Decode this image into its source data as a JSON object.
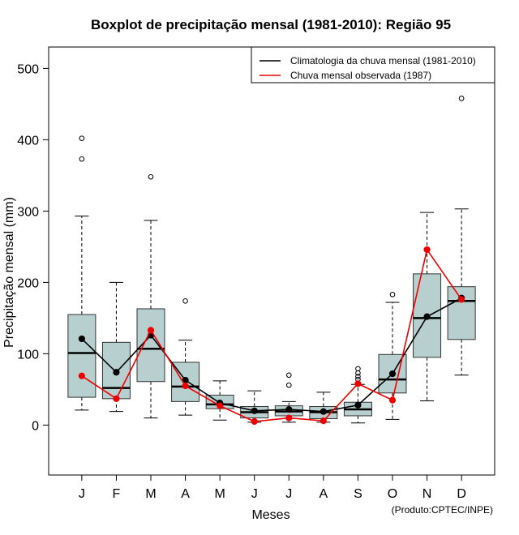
{
  "chart_data": {
    "type": "boxplot",
    "title": "Boxplot de precipitação mensal (1981-2010): Região 95",
    "xlabel": "Meses",
    "ylabel": "Precipitação mensal (mm)",
    "credit": "(Produto:CPTEC/INPE)",
    "ylim": [
      -70,
      530
    ],
    "yticks": [
      0,
      100,
      200,
      300,
      400,
      500
    ],
    "categories": [
      "J",
      "F",
      "M",
      "A",
      "M",
      "J",
      "J",
      "A",
      "S",
      "O",
      "N",
      "D"
    ],
    "boxes": [
      {
        "month": "J",
        "min": 21,
        "q1": 39,
        "median": 101,
        "q3": 155,
        "max": 293,
        "outliers": [
          373,
          402
        ]
      },
      {
        "month": "F",
        "min": 19,
        "q1": 37,
        "median": 52,
        "q3": 116,
        "max": 200,
        "outliers": []
      },
      {
        "month": "M",
        "min": 10,
        "q1": 61,
        "median": 107,
        "q3": 163,
        "max": 287,
        "outliers": [
          348
        ]
      },
      {
        "month": "A",
        "min": 14,
        "q1": 33,
        "median": 54,
        "q3": 88,
        "max": 119,
        "outliers": [
          174
        ]
      },
      {
        "month": "M",
        "min": 7,
        "q1": 23,
        "median": 29,
        "q3": 42,
        "max": 62,
        "outliers": []
      },
      {
        "month": "J",
        "min": 4,
        "q1": 10,
        "median": 18,
        "q3": 26,
        "max": 48,
        "outliers": []
      },
      {
        "month": "J",
        "min": 4,
        "q1": 13,
        "median": 19,
        "q3": 27,
        "max": 33,
        "outliers": [
          56,
          70
        ]
      },
      {
        "month": "A",
        "min": 4,
        "q1": 9,
        "median": 18,
        "q3": 26,
        "max": 46,
        "outliers": []
      },
      {
        "month": "S",
        "min": 3,
        "q1": 13,
        "median": 22,
        "q3": 32,
        "max": 57,
        "outliers": [
          64,
          68,
          73,
          79
        ]
      },
      {
        "month": "O",
        "min": 8,
        "q1": 45,
        "median": 64,
        "q3": 99,
        "max": 172,
        "outliers": [
          183
        ]
      },
      {
        "month": "N",
        "min": 34,
        "q1": 95,
        "median": 150,
        "q3": 212,
        "max": 298,
        "outliers": []
      },
      {
        "month": "D",
        "min": 70,
        "q1": 120,
        "median": 174,
        "q3": 194,
        "max": 303,
        "outliers": [
          458
        ]
      }
    ],
    "series": [
      {
        "name": "Climatologia da chuva mensal (1981-2010)",
        "color": "#000000",
        "values": [
          121,
          74,
          126,
          63,
          31,
          20,
          22,
          19,
          28,
          72,
          152,
          178
        ]
      },
      {
        "name": "Chuva mensal observada (1987)",
        "color": "#ee0000",
        "values": [
          69,
          37,
          133,
          55,
          27,
          5,
          10,
          6,
          58,
          35,
          246,
          176
        ]
      }
    ],
    "box_fill": "#b8cfcf",
    "legend_position": "top-right"
  }
}
